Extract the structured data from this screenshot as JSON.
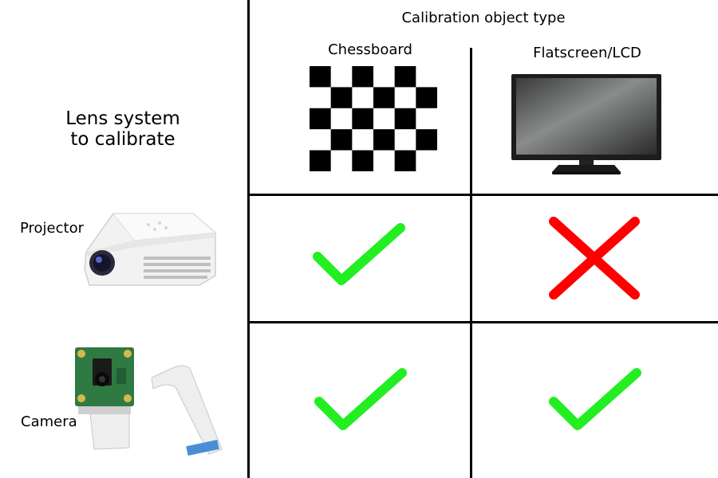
{
  "header": {
    "title": "Calibration object type"
  },
  "columns": [
    {
      "label": "Chessboard",
      "icon": "chessboard-icon"
    },
    {
      "label": "Flatscreen/LCD",
      "icon": "flatscreen-monitor-icon"
    }
  ],
  "rows_header": {
    "line1": "Lens system",
    "line2": "to calibrate"
  },
  "rows": [
    {
      "label": "Projector",
      "icon": "projector-icon",
      "cells": [
        "check",
        "cross"
      ]
    },
    {
      "label": "Camera",
      "icon": "camera-module-icon",
      "cells": [
        "check",
        "check"
      ]
    }
  ],
  "colors": {
    "check": "#22ee22",
    "cross": "#ff0000",
    "grid": "#000000"
  }
}
